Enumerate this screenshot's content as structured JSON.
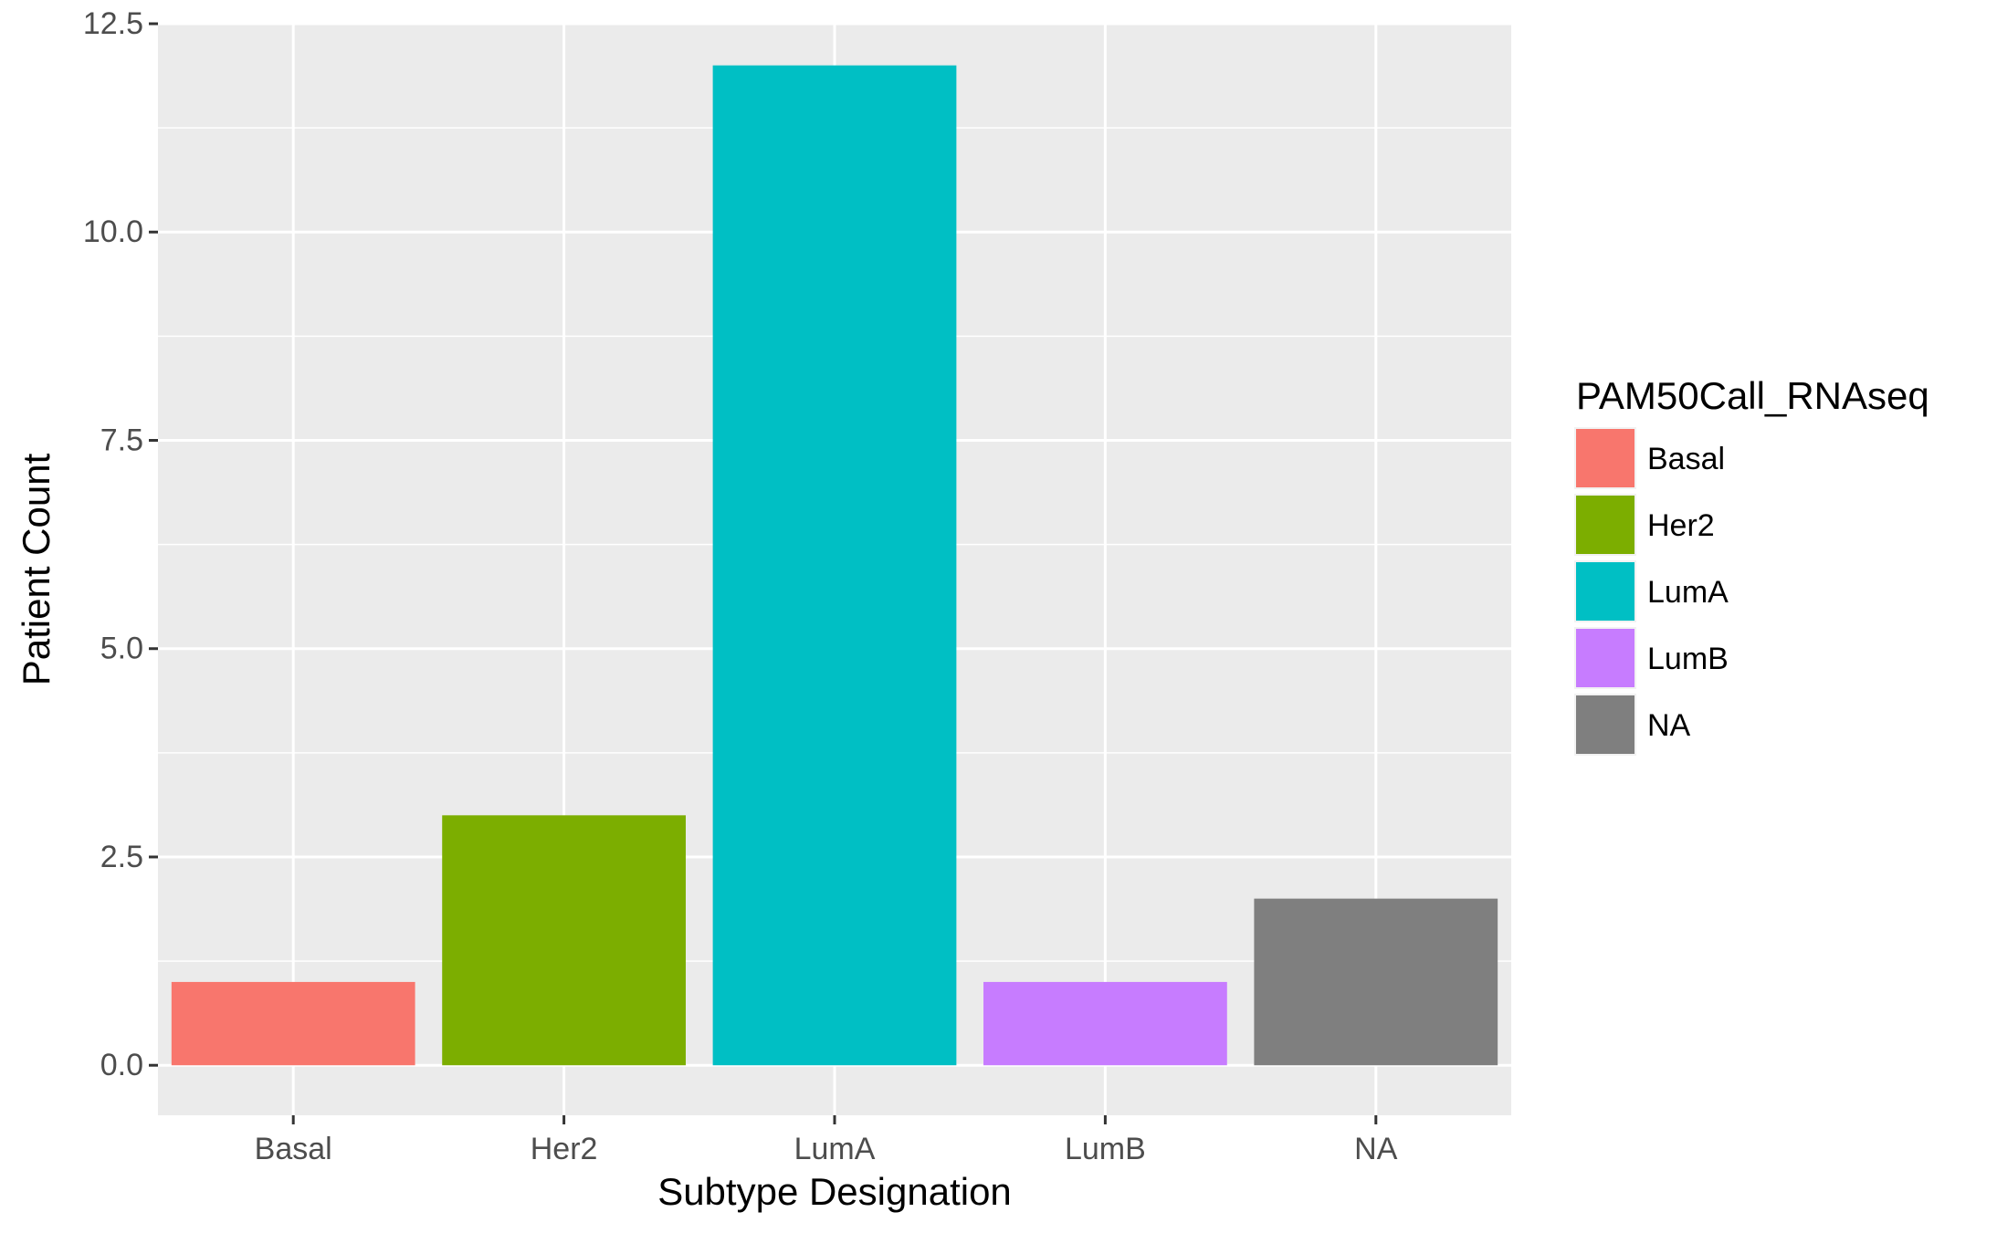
{
  "chart_data": {
    "type": "bar",
    "title": "",
    "xlabel": "Subtype Designation",
    "ylabel": "Patient Count",
    "categories": [
      "Basal",
      "Her2",
      "LumA",
      "LumB",
      "NA"
    ],
    "values": [
      1,
      3,
      12,
      1,
      2
    ],
    "colors": [
      "#F8766D",
      "#7CAE00",
      "#00BFC4",
      "#C77CFF",
      "#7F7F7F"
    ],
    "ylim": [
      -0.6,
      12.5
    ],
    "yticks": [
      0.0,
      2.5,
      5.0,
      7.5,
      10.0,
      12.5
    ],
    "ytick_labels": [
      "0.0",
      "2.5",
      "5.0",
      "7.5",
      "10.0",
      "12.5"
    ],
    "grid": true,
    "panel_background": "#EBEBEB",
    "legend": {
      "title": "PAM50Call_RNAseq",
      "placement": "right",
      "entries": [
        "Basal",
        "Her2",
        "LumA",
        "LumB",
        "NA"
      ]
    }
  }
}
